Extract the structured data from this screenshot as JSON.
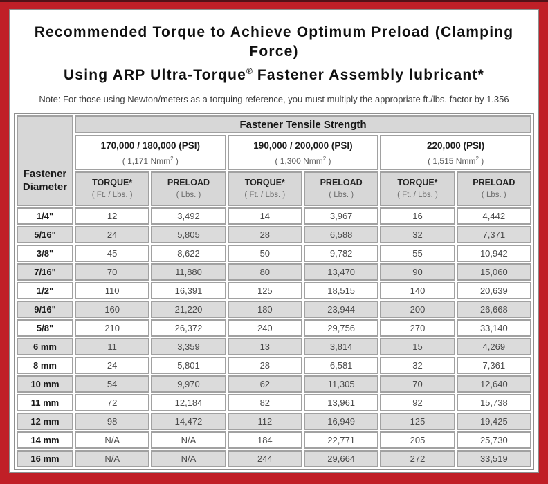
{
  "colors": {
    "frame_red": "#c01f27",
    "frame_top_edge": "#531117",
    "header_gray": "#d7d7d7",
    "alt_row_gray": "#dbdbdb",
    "cell_border_gray": "#a1a1a1"
  },
  "title": {
    "line1": "Recommended Torque to Achieve Optimum Preload (Clamping Force)",
    "line2_pre": "Using ARP Ultra-Torque",
    "line2_sup": "®",
    "line2_post": " Fastener Assembly lubricant*"
  },
  "note": "Note: For those using Newton/meters as a torquing reference, you must multiply the appropriate ft./lbs. factor by 1.356",
  "table": {
    "corner_line1": "Fastener",
    "corner_line2": "Diameter",
    "tensile_header": "Fastener Tensile Strength",
    "strength_groups": [
      {
        "psi": "170,000 / 180,000 (PSI)",
        "nmm_prefix": "( 1,171 Nmm",
        "nmm_sup": "2",
        "nmm_suffix": " )"
      },
      {
        "psi": "190,000 / 200,000 (PSI)",
        "nmm_prefix": "( 1,300 Nmm",
        "nmm_sup": "2",
        "nmm_suffix": " )"
      },
      {
        "psi": "220,000 (PSI)",
        "nmm_prefix": "( 1,515 Nmm",
        "nmm_sup": "2",
        "nmm_suffix": " )"
      }
    ],
    "sub_headers": {
      "torque_label": "TORQUE*",
      "torque_unit": "( Ft. / Lbs. )",
      "preload_label": "PRELOAD",
      "preload_unit": "( Lbs. )"
    },
    "rows": [
      {
        "diameter": "1/4\"",
        "values": [
          "12",
          "3,492",
          "14",
          "3,967",
          "16",
          "4,442"
        ]
      },
      {
        "diameter": "5/16\"",
        "values": [
          "24",
          "5,805",
          "28",
          "6,588",
          "32",
          "7,371"
        ]
      },
      {
        "diameter": "3/8\"",
        "values": [
          "45",
          "8,622",
          "50",
          "9,782",
          "55",
          "10,942"
        ]
      },
      {
        "diameter": "7/16\"",
        "values": [
          "70",
          "11,880",
          "80",
          "13,470",
          "90",
          "15,060"
        ]
      },
      {
        "diameter": "1/2\"",
        "values": [
          "110",
          "16,391",
          "125",
          "18,515",
          "140",
          "20,639"
        ]
      },
      {
        "diameter": "9/16\"",
        "values": [
          "160",
          "21,220",
          "180",
          "23,944",
          "200",
          "26,668"
        ]
      },
      {
        "diameter": "5/8\"",
        "values": [
          "210",
          "26,372",
          "240",
          "29,756",
          "270",
          "33,140"
        ]
      },
      {
        "diameter": "6 mm",
        "values": [
          "11",
          "3,359",
          "13",
          "3,814",
          "15",
          "4,269"
        ]
      },
      {
        "diameter": "8 mm",
        "values": [
          "24",
          "5,801",
          "28",
          "6,581",
          "32",
          "7,361"
        ]
      },
      {
        "diameter": "10 mm",
        "values": [
          "54",
          "9,970",
          "62",
          "11,305",
          "70",
          "12,640"
        ]
      },
      {
        "diameter": "11 mm",
        "values": [
          "72",
          "12,184",
          "82",
          "13,961",
          "92",
          "15,738"
        ]
      },
      {
        "diameter": "12 mm",
        "values": [
          "98",
          "14,472",
          "112",
          "16,949",
          "125",
          "19,425"
        ]
      },
      {
        "diameter": "14 mm",
        "values": [
          "N/A",
          "N/A",
          "184",
          "22,771",
          "205",
          "25,730"
        ]
      },
      {
        "diameter": "16 mm",
        "values": [
          "N/A",
          "N/A",
          "244",
          "29,664",
          "272",
          "33,519"
        ]
      }
    ]
  }
}
